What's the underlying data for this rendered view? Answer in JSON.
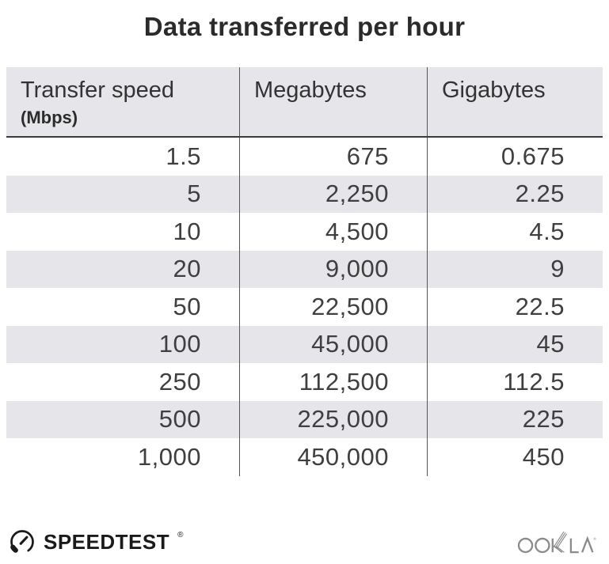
{
  "title": "Data transferred per hour",
  "chart_data": {
    "type": "table",
    "title": "Data transferred per hour",
    "columns": [
      "Transfer speed (Mbps)",
      "Megabytes",
      "Gigabytes"
    ],
    "rows": [
      [
        1.5,
        675,
        0.675
      ],
      [
        5,
        2250,
        2.25
      ],
      [
        10,
        4500,
        4.5
      ],
      [
        20,
        9000,
        9
      ],
      [
        50,
        22500,
        22.5
      ],
      [
        100,
        45000,
        45
      ],
      [
        250,
        112500,
        112.5
      ],
      [
        500,
        225000,
        225
      ],
      [
        1000,
        450000,
        450
      ]
    ]
  },
  "table": {
    "header": {
      "col1_label": "Transfer speed",
      "col1_sublabel": "(Mbps)",
      "col2_label": "Megabytes",
      "col3_label": "Gigabytes"
    },
    "rows": [
      [
        "1.5",
        "675",
        "0.675"
      ],
      [
        "5",
        "2,250",
        "2.25"
      ],
      [
        "10",
        "4,500",
        "4.5"
      ],
      [
        "20",
        "9,000",
        "9"
      ],
      [
        "50",
        "22,500",
        "22.5"
      ],
      [
        "100",
        "45,000",
        "45"
      ],
      [
        "250",
        "112,500",
        "112.5"
      ],
      [
        "500",
        "225,000",
        "225"
      ],
      [
        "1,000",
        "450,000",
        "450"
      ]
    ]
  },
  "footer": {
    "speedtest_label": "SPEEDTEST",
    "speedtest_mark": "®",
    "ookla_label": "OOKLA",
    "ookla_mark": "®"
  },
  "colors": {
    "stripe": "#e6e5e9",
    "header_bg": "#e6e5e9",
    "header_rule": "#3b3b3b",
    "column_divider": "#555555",
    "title_text": "#2b2b2b",
    "body_text": "#3f3f3f",
    "speedtest_dark": "#1a1a1a",
    "ookla_gray": "#8b8b8b"
  }
}
